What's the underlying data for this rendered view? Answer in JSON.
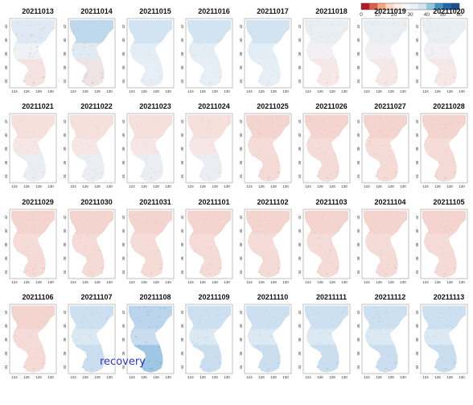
{
  "colorbar": {
    "ticks": [
      "0",
      "10",
      "20",
      "30",
      "40",
      "50",
      "60"
    ],
    "colors": [
      "#b2182b",
      "#d6604d",
      "#f4a582",
      "#fbd7c4",
      "#fdeee8",
      "#f7f7f7",
      "#e8f1f8",
      "#d1e5f0",
      "#92c5de",
      "#4393c3",
      "#2166ac",
      "#1a4f8f"
    ]
  },
  "axes": {
    "x_ticks": [
      "124",
      "126",
      "128",
      "130"
    ],
    "y_ticks": [
      "42",
      "40",
      "38",
      "36",
      "34"
    ]
  },
  "annotation": {
    "text": "recovery"
  },
  "panels": [
    {
      "date": "20211013",
      "tone": "mixed"
    },
    {
      "date": "20211014",
      "tone": "blue-north"
    },
    {
      "date": "20211015",
      "tone": "blue-light"
    },
    {
      "date": "20211016",
      "tone": "blue-light"
    },
    {
      "date": "20211017",
      "tone": "blue-light"
    },
    {
      "date": "20211018",
      "tone": "neutral"
    },
    {
      "date": "20211019",
      "tone": "neutral"
    },
    {
      "date": "20211020",
      "tone": "neutral"
    },
    {
      "date": "20211021",
      "tone": "pink-light"
    },
    {
      "date": "20211022",
      "tone": "pink-light"
    },
    {
      "date": "20211023",
      "tone": "pink-light"
    },
    {
      "date": "20211024",
      "tone": "pink-light"
    },
    {
      "date": "20211025",
      "tone": "pink"
    },
    {
      "date": "20211026",
      "tone": "pink"
    },
    {
      "date": "20211027",
      "tone": "pink"
    },
    {
      "date": "20211028",
      "tone": "pink"
    },
    {
      "date": "20211029",
      "tone": "pink"
    },
    {
      "date": "20211030",
      "tone": "pink"
    },
    {
      "date": "20211031",
      "tone": "pink"
    },
    {
      "date": "20211101",
      "tone": "pink"
    },
    {
      "date": "20211102",
      "tone": "pink"
    },
    {
      "date": "20211103",
      "tone": "pink"
    },
    {
      "date": "20211104",
      "tone": "pink"
    },
    {
      "date": "20211105",
      "tone": "pink"
    },
    {
      "date": "20211106",
      "tone": "pink"
    },
    {
      "date": "20211107",
      "tone": "blue-mid"
    },
    {
      "date": "20211108",
      "tone": "blue-strong"
    },
    {
      "date": "20211109",
      "tone": "blue-mid"
    },
    {
      "date": "20211110",
      "tone": "blue-mid"
    },
    {
      "date": "20211111",
      "tone": "blue-mid"
    },
    {
      "date": "20211112",
      "tone": "blue-mid"
    },
    {
      "date": "20211113",
      "tone": "blue-mid"
    }
  ]
}
